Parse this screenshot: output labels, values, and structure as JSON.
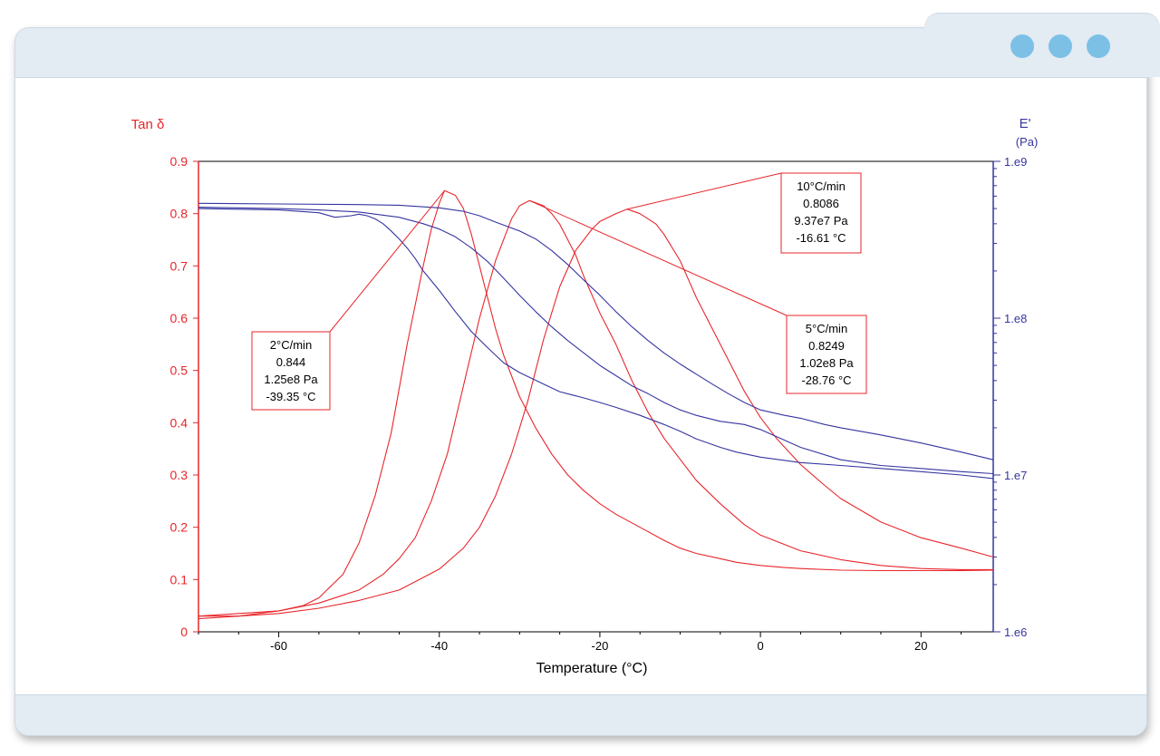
{
  "window": {
    "controls": [
      "dot-icon",
      "dot-icon",
      "dot-icon"
    ]
  },
  "colors": {
    "tan_delta": "#e8262b",
    "modulus": "#3535a0",
    "window_chrome": "#e3ebf3",
    "window_dots": "#7cc0e6"
  },
  "chart_data": {
    "type": "line",
    "xlabel": "Temperature (°C)",
    "ylabel_left": "Tan δ",
    "ylabel_right_line1": "E'",
    "ylabel_right_line2": "(Pa)",
    "xlim": [
      -70,
      29
    ],
    "ylim_left": [
      0,
      0.9
    ],
    "ylim_right": [
      1000000,
      1000000000
    ],
    "right_axis_scale": "log",
    "grid": false,
    "x_ticks": [
      -60,
      -40,
      -20,
      0,
      20
    ],
    "x_tick_labels": [
      "-60",
      "-40",
      "-20",
      "0",
      "20"
    ],
    "y_left_ticks": [
      0,
      0.1,
      0.2,
      0.3,
      0.4,
      0.5,
      0.6,
      0.7,
      0.8,
      0.9
    ],
    "y_left_tick_labels": [
      "0",
      "0.1",
      "0.2",
      "0.3",
      "0.4",
      "0.5",
      "0.6",
      "0.7",
      "0.8",
      "0.9"
    ],
    "y_right_ticks": [
      1000000,
      10000000,
      100000000,
      1000000000
    ],
    "y_right_tick_labels": [
      "1.e6",
      "1.e7",
      "1.e8",
      "1.e9"
    ],
    "series": [
      {
        "axis": "left",
        "color": "#e8262b",
        "x": [
          -70,
          -65,
          -60,
          -57,
          -55,
          -52,
          -50,
          -48,
          -46,
          -44,
          -42,
          -41,
          -40,
          -39.35,
          -38,
          -37,
          -36,
          -35,
          -34,
          -33,
          -32,
          -30,
          -28,
          -26,
          -24,
          -22,
          -20,
          -18,
          -15,
          -12,
          -10,
          -8,
          -5,
          -3,
          0,
          3,
          5,
          10,
          15,
          20,
          25,
          29
        ],
        "y": [
          0.03,
          0.035,
          0.04,
          0.05,
          0.065,
          0.11,
          0.17,
          0.26,
          0.38,
          0.55,
          0.7,
          0.77,
          0.82,
          0.844,
          0.835,
          0.81,
          0.76,
          0.7,
          0.64,
          0.58,
          0.53,
          0.45,
          0.39,
          0.34,
          0.3,
          0.27,
          0.245,
          0.225,
          0.2,
          0.175,
          0.16,
          0.15,
          0.14,
          0.133,
          0.127,
          0.123,
          0.121,
          0.118,
          0.117,
          0.117,
          0.117,
          0.118
        ]
      },
      {
        "axis": "left",
        "color": "#e8262b",
        "x": [
          -70,
          -65,
          -60,
          -55,
          -50,
          -47,
          -45,
          -43,
          -41,
          -39,
          -37,
          -35,
          -33,
          -31,
          -30,
          -28.76,
          -27,
          -26,
          -25,
          -24,
          -23,
          -22,
          -20,
          -18,
          -16,
          -14,
          -12,
          -10,
          -8,
          -5,
          -2,
          0,
          5,
          10,
          15,
          20,
          25,
          29
        ],
        "y": [
          0.025,
          0.03,
          0.04,
          0.055,
          0.08,
          0.11,
          0.14,
          0.18,
          0.25,
          0.34,
          0.47,
          0.6,
          0.71,
          0.79,
          0.815,
          0.8249,
          0.815,
          0.8,
          0.78,
          0.75,
          0.72,
          0.68,
          0.61,
          0.55,
          0.48,
          0.42,
          0.37,
          0.33,
          0.29,
          0.245,
          0.205,
          0.185,
          0.155,
          0.138,
          0.127,
          0.121,
          0.119,
          0.119
        ]
      },
      {
        "axis": "left",
        "color": "#e8262b",
        "x": [
          -70,
          -65,
          -60,
          -55,
          -50,
          -45,
          -40,
          -37,
          -35,
          -33,
          -31,
          -29,
          -27,
          -25,
          -23,
          -21,
          -20,
          -18,
          -16.61,
          -15,
          -13,
          -12,
          -10,
          -8,
          -6,
          -4,
          -2,
          0,
          2,
          5,
          8,
          10,
          15,
          20,
          25,
          29
        ],
        "y": [
          0.03,
          0.03,
          0.035,
          0.045,
          0.06,
          0.08,
          0.12,
          0.16,
          0.2,
          0.26,
          0.34,
          0.44,
          0.56,
          0.66,
          0.73,
          0.77,
          0.785,
          0.8,
          0.8086,
          0.8,
          0.78,
          0.76,
          0.71,
          0.64,
          0.58,
          0.52,
          0.46,
          0.41,
          0.37,
          0.32,
          0.28,
          0.255,
          0.21,
          0.18,
          0.16,
          0.143
        ]
      },
      {
        "axis": "right",
        "color": "#3535a0",
        "x": [
          -70,
          -60,
          -55,
          -53,
          -51,
          -50,
          -49,
          -48,
          -47,
          -46,
          -45,
          -44,
          -43,
          -42,
          -40,
          -38,
          -36,
          -34,
          -32,
          -30,
          -27,
          -25,
          -22,
          -20,
          -18,
          -15,
          -12,
          -10,
          -8,
          -5,
          -3,
          0,
          5,
          10,
          15,
          20,
          25,
          29
        ],
        "y": [
          500000000,
          490000000,
          470000000,
          440000000,
          450000000,
          460000000,
          450000000,
          430000000,
          400000000,
          360000000,
          320000000,
          280000000,
          240000000,
          200000000,
          150000000,
          110000000,
          82000000,
          65000000,
          52000000,
          45000000,
          38000000,
          34000000,
          31000000,
          29000000,
          27000000,
          24000000,
          21000000,
          19000000,
          17000000,
          15000000,
          14000000,
          13000000,
          12000000,
          11500000,
          11000000,
          10500000,
          10000000,
          9500000
        ]
      },
      {
        "axis": "right",
        "color": "#3535a0",
        "x": [
          -70,
          -60,
          -55,
          -50,
          -45,
          -42,
          -40,
          -38,
          -36,
          -34,
          -32,
          -30,
          -28,
          -26,
          -24,
          -22,
          -20,
          -18,
          -16,
          -14,
          -12,
          -10,
          -8,
          -5,
          -2,
          0,
          5,
          10,
          15,
          20,
          25,
          29
        ],
        "y": [
          510000000,
          500000000,
          490000000,
          475000000,
          440000000,
          400000000,
          370000000,
          330000000,
          280000000,
          230000000,
          180000000,
          140000000,
          110000000,
          88000000,
          72000000,
          60000000,
          50000000,
          43000000,
          37000000,
          33000000,
          29000000,
          26000000,
          24000000,
          22000000,
          21000000,
          19500000,
          15000000,
          12500000,
          11500000,
          11000000,
          10500000,
          10200000
        ]
      },
      {
        "axis": "right",
        "color": "#3535a0",
        "x": [
          -70,
          -60,
          -50,
          -45,
          -40,
          -37,
          -35,
          -33,
          -30,
          -28,
          -26,
          -24,
          -22,
          -20,
          -18,
          -16,
          -14,
          -12,
          -10,
          -8,
          -6,
          -4,
          -2,
          0,
          3,
          5,
          8,
          10,
          15,
          20,
          25,
          29
        ],
        "y": [
          540000000,
          535000000,
          530000000,
          525000000,
          505000000,
          480000000,
          450000000,
          410000000,
          360000000,
          320000000,
          270000000,
          220000000,
          175000000,
          140000000,
          110000000,
          88000000,
          72000000,
          60000000,
          51000000,
          44000000,
          38000000,
          33000000,
          29000000,
          26000000,
          24000000,
          23000000,
          21000000,
          20000000,
          18000000,
          16000000,
          14000000,
          12500000
        ]
      }
    ],
    "annotations": [
      {
        "lines": [
          "2°C/min",
          "0.844",
          "1.25e8 Pa",
          "-39.35 °C"
        ],
        "point": {
          "x": -39.35,
          "y": 0.844
        }
      },
      {
        "lines": [
          "5°C/min",
          "0.8249",
          "1.02e8 Pa",
          "-28.76 °C"
        ],
        "point": {
          "x": -28.76,
          "y": 0.8249
        }
      },
      {
        "lines": [
          "10°C/min",
          "0.8086",
          "9.37e7 Pa",
          "-16.61 °C"
        ],
        "point": {
          "x": -16.61,
          "y": 0.8086
        }
      }
    ]
  }
}
